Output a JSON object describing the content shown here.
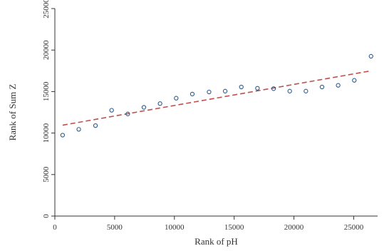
{
  "chart_data": {
    "type": "scatter",
    "xlabel": "Rank of pH",
    "ylabel": "Rank of Sum Z",
    "xlim": [
      0,
      27000
    ],
    "ylim": [
      0,
      25000
    ],
    "x_ticks": [
      0,
      5000,
      10000,
      15000,
      20000,
      25000
    ],
    "y_ticks": [
      0,
      5000,
      10000,
      15000,
      20000,
      25000
    ],
    "x_tick_labels": [
      "0",
      "5000",
      "10000",
      "15000",
      "20000",
      "25000"
    ],
    "y_tick_labels": [
      "0",
      "5000",
      "10000",
      "15000",
      "20000",
      "25000"
    ],
    "grid": false,
    "series": [
      {
        "type": "scatter",
        "marker": "hollow-circle",
        "color": "#2a5a8c",
        "x": [
          650,
          2000,
          3400,
          4750,
          6100,
          7450,
          8800,
          10150,
          11500,
          12900,
          14250,
          15600,
          16950,
          18300,
          19650,
          21000,
          22350,
          23700,
          25050,
          26450
        ],
        "y": [
          9750,
          10450,
          10900,
          12750,
          12300,
          13100,
          13550,
          14200,
          14700,
          14950,
          15050,
          15550,
          15400,
          15350,
          15050,
          15050,
          15550,
          15750,
          16350,
          19250
        ]
      },
      {
        "type": "line",
        "style": "dashed",
        "color": "#c0504d",
        "x": [
          650,
          26450
        ],
        "y": [
          10950,
          17500
        ]
      }
    ]
  }
}
